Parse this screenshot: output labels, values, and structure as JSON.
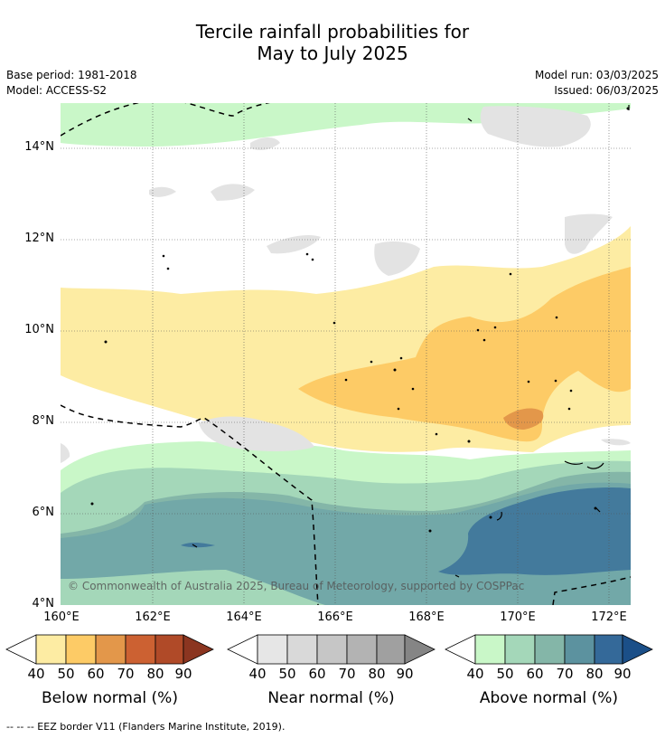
{
  "title_line1": "Tercile rainfall probabilities for",
  "title_line2": "May to July 2025",
  "base_period": "Base period: 1981-2018",
  "model": "Model: ACCESS-S2",
  "model_run": "Model run: 03/03/2025",
  "issued": "Issued: 06/03/2025",
  "lat_labels": [
    "14°N",
    "12°N",
    "10°N",
    "8°N",
    "6°N",
    "4°N"
  ],
  "lon_labels": [
    "160°E",
    "162°E",
    "164°E",
    "166°E",
    "168°E",
    "170°E",
    "172°E"
  ],
  "copyright": "© Commonwealth of Australia 2025, Bureau of Meteorology, supported by COSPPac",
  "colorbars": [
    {
      "title": "Below normal (%)",
      "ticks": [
        "40",
        "50",
        "60",
        "70",
        "80",
        "90"
      ],
      "colors": [
        "#fdeca3",
        "#fdcb66",
        "#e3974a",
        "#cc6132",
        "#b04a28",
        "#8b3520"
      ]
    },
    {
      "title": "Near normal (%)",
      "ticks": [
        "40",
        "50",
        "60",
        "70",
        "80",
        "90"
      ],
      "colors": [
        "#e6e6e6",
        "#d9d9d9",
        "#c6c6c6",
        "#b3b3b3",
        "#a0a0a0",
        "#858585"
      ]
    },
    {
      "title": "Above normal (%)",
      "ticks": [
        "40",
        "50",
        "60",
        "70",
        "80",
        "90"
      ],
      "colors": [
        "#c9f7c8",
        "#a4d7b9",
        "#84b6a8",
        "#5c929f",
        "#346999",
        "#1b4f88"
      ]
    }
  ],
  "footer": "--  --  -- EEZ border V11 (Flanders Marine Institute, 2019)."
}
